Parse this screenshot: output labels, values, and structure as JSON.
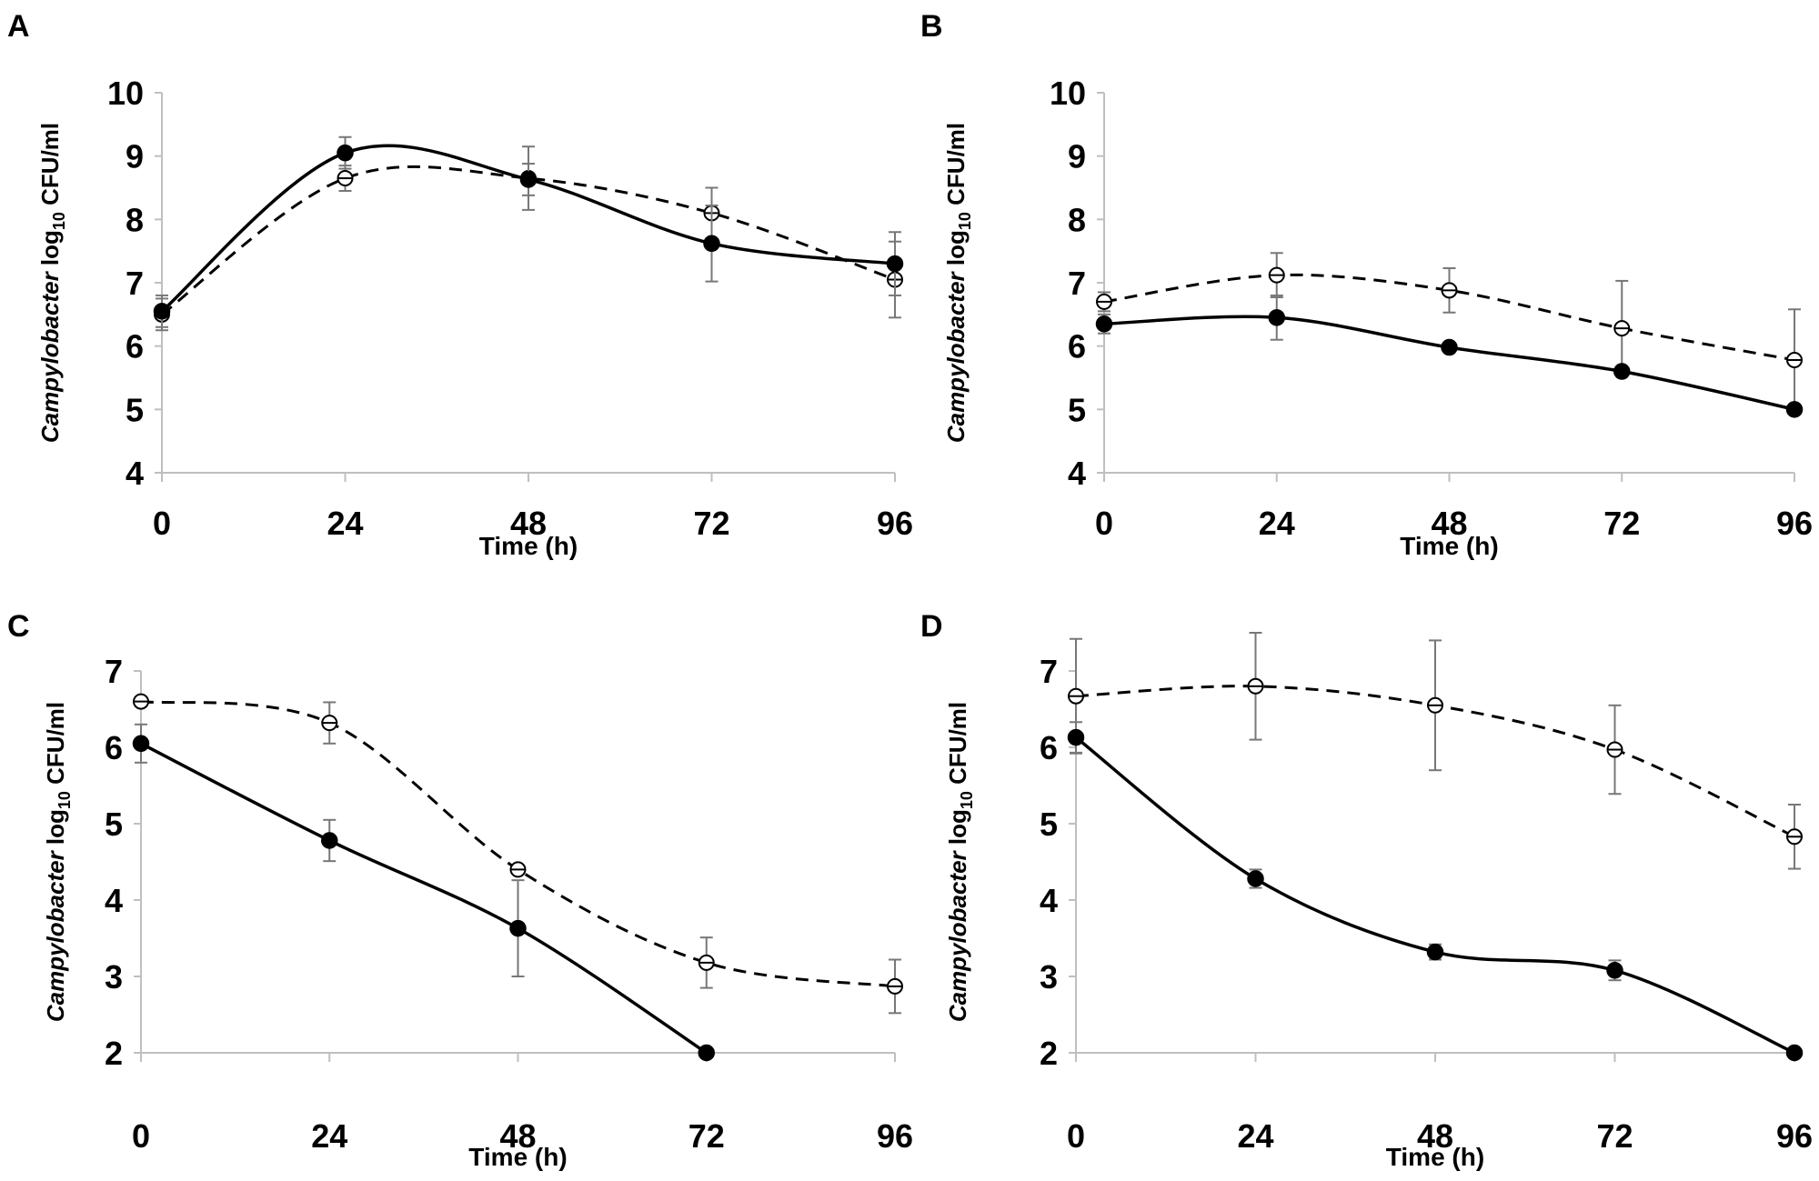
{
  "chart_data": [
    {
      "panel": "A",
      "type": "line",
      "xlabel": "Time (h)",
      "ylabel": {
        "italic": "Campylobacter",
        "plain": " log",
        "sub": "10",
        "unit": " CFU/ml"
      },
      "x": [
        0,
        24,
        48,
        72,
        96
      ],
      "x_ticks": [
        "0",
        "24",
        "48",
        "72",
        "96"
      ],
      "ylim": [
        4,
        10
      ],
      "y_ticks": [
        "4",
        "5",
        "6",
        "7",
        "8",
        "9",
        "10"
      ],
      "series": [
        {
          "name": "filled",
          "marker": "filled-circle",
          "line": "solid",
          "values": [
            6.55,
            9.05,
            8.63,
            7.62,
            7.3
          ],
          "errors": [
            0.25,
            0.25,
            0.25,
            0.6,
            0.5
          ]
        },
        {
          "name": "open",
          "marker": "open-circle",
          "line": "dashed",
          "values": [
            6.5,
            8.65,
            8.65,
            8.1,
            7.05
          ],
          "errors": [
            0.25,
            0.2,
            0.5,
            0.4,
            0.6
          ]
        }
      ]
    },
    {
      "panel": "B",
      "type": "line",
      "xlabel": "Time (h)",
      "ylabel": {
        "italic": "Campylobacter",
        "plain": " log",
        "sub": "10",
        "unit": " CFU/ml"
      },
      "x": [
        0,
        24,
        48,
        72,
        96
      ],
      "x_ticks": [
        "0",
        "24",
        "48",
        "72",
        "96"
      ],
      "ylim": [
        4,
        10
      ],
      "y_ticks": [
        "4",
        "5",
        "6",
        "7",
        "8",
        "9",
        "10"
      ],
      "series": [
        {
          "name": "filled",
          "marker": "filled-circle",
          "line": "solid",
          "values": [
            6.35,
            6.45,
            5.98,
            5.6,
            5.0
          ],
          "errors": [
            0.15,
            0.35,
            0.05,
            0.05,
            0.05
          ]
        },
        {
          "name": "open",
          "marker": "open-circle",
          "line": "dashed",
          "values": [
            6.7,
            7.12,
            6.88,
            6.28,
            5.78
          ],
          "errors": [
            0.15,
            0.35,
            0.35,
            0.75,
            0.8
          ]
        }
      ]
    },
    {
      "panel": "C",
      "type": "line",
      "xlabel": "Time (h)",
      "ylabel": {
        "italic": "Campylobacter",
        "plain": " log",
        "sub": "10",
        "unit": " CFU/ml"
      },
      "x": [
        0,
        24,
        48,
        72,
        96
      ],
      "x_ticks": [
        "0",
        "24",
        "48",
        "72",
        "96"
      ],
      "ylim": [
        2,
        7
      ],
      "y_ticks": [
        "2",
        "3",
        "4",
        "5",
        "6",
        "7"
      ],
      "series": [
        {
          "name": "filled",
          "marker": "filled-circle",
          "line": "solid",
          "values": [
            6.05,
            4.78,
            3.63,
            2.0,
            null
          ],
          "errors": [
            0.25,
            0.27,
            0.63,
            0.0,
            null
          ]
        },
        {
          "name": "open",
          "marker": "open-circle",
          "line": "dashed",
          "values": [
            6.6,
            6.32,
            4.4,
            3.18,
            2.87
          ],
          "errors": [
            0.05,
            0.27,
            0.05,
            0.33,
            0.35
          ]
        }
      ]
    },
    {
      "panel": "D",
      "type": "line",
      "xlabel": "Time (h)",
      "ylabel": {
        "italic": "Campylobacter",
        "plain": " log",
        "sub": "10",
        "unit": " CFU/ml"
      },
      "x": [
        0,
        24,
        48,
        72,
        96
      ],
      "x_ticks": [
        "0",
        "24",
        "48",
        "72",
        "96"
      ],
      "ylim": [
        2,
        7
      ],
      "y_ticks": [
        "2",
        "3",
        "4",
        "5",
        "6",
        "7"
      ],
      "series": [
        {
          "name": "filled",
          "marker": "filled-circle",
          "line": "solid",
          "values": [
            6.13,
            4.28,
            3.32,
            3.08,
            2.0
          ],
          "errors": [
            0.2,
            0.12,
            0.1,
            0.13,
            0.0
          ]
        },
        {
          "name": "open",
          "marker": "open-circle",
          "line": "dashed",
          "values": [
            6.67,
            6.8,
            6.55,
            5.97,
            4.83
          ],
          "errors": [
            0.75,
            0.7,
            0.85,
            0.58,
            0.42
          ]
        }
      ]
    }
  ]
}
